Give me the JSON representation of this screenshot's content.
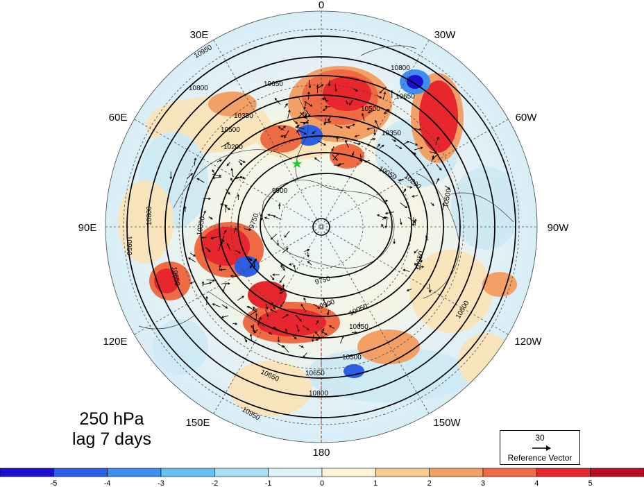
{
  "longitude_labels": {
    "top": "0",
    "bottom": "180",
    "e30": "30E",
    "e60": "60E",
    "e90": "90E",
    "e120": "120E",
    "e150": "150E",
    "w30": "30W",
    "w60": "60W",
    "w90": "90W",
    "w120": "120W",
    "w150": "150W"
  },
  "contour_labels": [
    "10950",
    "10800",
    "10650",
    "10500",
    "10350",
    "10200",
    "9900",
    "9750",
    "9750",
    "9900",
    "10050",
    "10350",
    "10650",
    "10800",
    "10950",
    "10800",
    "10650",
    "10500",
    "10350",
    "10050",
    "10500",
    "10650",
    "10800",
    "10950",
    "10500",
    "10350",
    "10200",
    "10050",
    "10800",
    "10650"
  ],
  "caption": {
    "level": "250 hPa",
    "lag": "lag 7 days"
  },
  "reference_vector": {
    "magnitude": "30",
    "label": "Reference Vector"
  },
  "colorbar": {
    "ticks": [
      "-5",
      "-4",
      "-3",
      "-2",
      "-1",
      "0",
      "1",
      "2",
      "3",
      "4",
      "5"
    ],
    "colors": [
      "#1c0fcf",
      "#2c5ee8",
      "#3e8ef0",
      "#69c1f2",
      "#a6e0f5",
      "#dcf3f7",
      "#fdf5d5",
      "#f8cc8f",
      "#f3a067",
      "#ef6b44",
      "#e8262e",
      "#b80f23"
    ]
  },
  "marker_color": "#22cc22"
}
